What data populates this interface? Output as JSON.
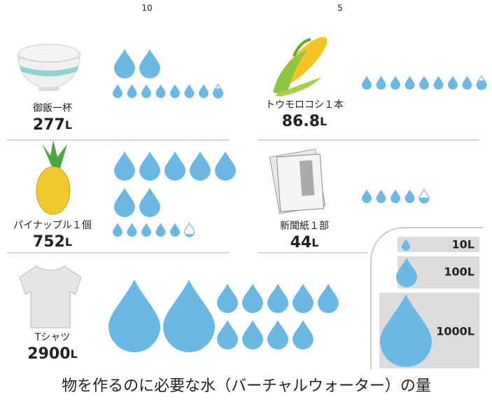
{
  "top_labels": [
    "10",
    "5"
  ],
  "items": [
    {
      "name": "御飯一杯",
      "amount": 277,
      "unit": "L"
    },
    {
      "name": "トウモロコシ１本",
      "amount": 86.8,
      "unit": "L"
    },
    {
      "name": "パイナップル１個",
      "amount": 752,
      "unit": "L"
    },
    {
      "name": "新聞紙１部",
      "amount": 44,
      "unit": "L"
    },
    {
      "name": "Tシャツ",
      "amount": 2900,
      "unit": "L"
    }
  ],
  "legend": [
    "10L",
    "100L",
    "1000L"
  ],
  "caption": "物を作るのに必要な水（バーチャルウォーター）の量"
}
